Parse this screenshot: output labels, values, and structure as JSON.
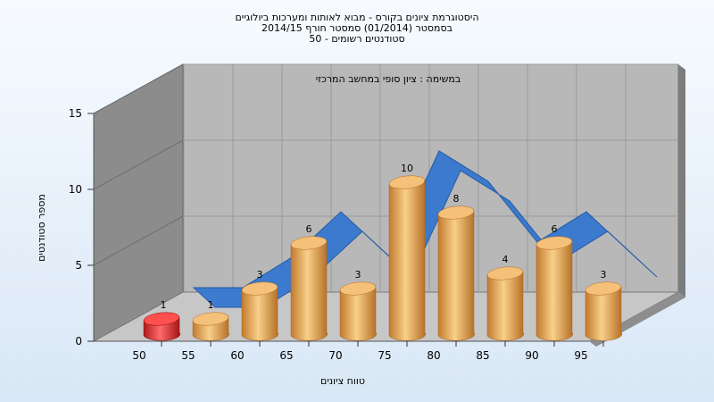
{
  "chart_data": {
    "type": "bar",
    "title_lines": [
      "היסטוגרמת ציונים בקורס - מבוא לאותות ומערכות ביולוגיים",
      "בסמסטר  (01/2014)  סמסטר חורף 2014/15",
      "סטודנטים רשומים - 50"
    ],
    "subtitle": "במשימה : ציון סופי במחשב המרכזי",
    "xlabel": "טווח ציונים",
    "ylabel": "מספר סטודנטים",
    "x_ticks": [
      "50",
      "55",
      "60",
      "65",
      "70",
      "75",
      "80",
      "85",
      "90",
      "95"
    ],
    "y_ticks": [
      0,
      5,
      10,
      15
    ],
    "ylim": [
      0,
      15
    ],
    "series": [
      {
        "values": [
          1,
          1,
          3,
          6,
          3,
          10,
          8,
          4,
          6,
          3
        ],
        "colors": [
          "#e32f2f",
          "#eba44e",
          "#eba44e",
          "#eba44e",
          "#eba44e",
          "#eba44e",
          "#eba44e",
          "#eba44e",
          "#eba44e",
          "#eba44e"
        ]
      }
    ],
    "ribbon_values": [
      1,
      1,
      3,
      6,
      3,
      10,
      8,
      4,
      6,
      3
    ],
    "ribbon_color": "#3577cf",
    "grid": true,
    "legend": "none"
  }
}
